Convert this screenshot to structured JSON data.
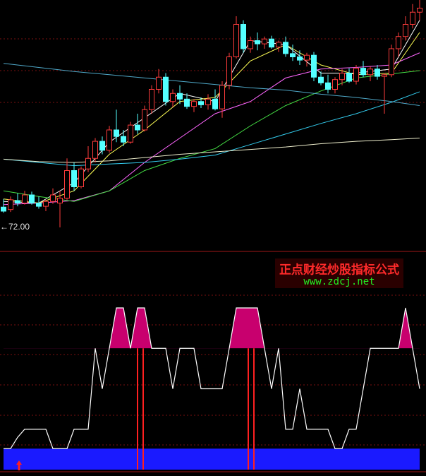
{
  "chart_data": {
    "type": "candlestick",
    "ylim": [
      70,
      100
    ],
    "up_color": "#ff3c3c",
    "down_color": "#54ffff",
    "candles": {
      "open": [
        74.5,
        74.2,
        75.3,
        75.0,
        76.0,
        75.0,
        74.6,
        75.2,
        75.0,
        75.6,
        79.0,
        77.0,
        79.2,
        80.5,
        82.6,
        81.5,
        84.0,
        83.2,
        82.5,
        84.6,
        84.0,
        86.5,
        89.0,
        90.5,
        87.5,
        88.5,
        87.8,
        86.9,
        87.5,
        87.1,
        87.8,
        86.6,
        89.5,
        93.0,
        97.0,
        94.0,
        95.0,
        94.6,
        95.2,
        94.2,
        94.8,
        93.4,
        93.0,
        92.6,
        93.2,
        90.5,
        89.8,
        89.0,
        90.2,
        91.0,
        90.0,
        91.6,
        90.8,
        91.5,
        90.6,
        90.8,
        94.0,
        95.5,
        97.0,
        98.5
      ],
      "high": [
        75.5,
        75.8,
        76.2,
        76.5,
        76.4,
        75.8,
        75.4,
        76.8,
        76.5,
        80.5,
        80.0,
        79.5,
        82.0,
        83.0,
        83.2,
        84.5,
        86.5,
        84.0,
        85.0,
        86.0,
        87.0,
        89.5,
        91.5,
        91.0,
        89.0,
        89.5,
        88.5,
        87.8,
        88.0,
        88.4,
        89.0,
        90.0,
        93.5,
        98.0,
        97.5,
        95.5,
        96.0,
        95.5,
        95.6,
        95.0,
        95.5,
        94.5,
        93.8,
        93.5,
        93.6,
        91.2,
        90.8,
        90.5,
        91.5,
        91.6,
        92.0,
        92.5,
        91.8,
        92.0,
        91.0,
        94.5,
        96.0,
        98.0,
        99.5,
        100
      ],
      "low": [
        73.8,
        73.9,
        74.6,
        74.8,
        74.8,
        74.3,
        74.0,
        74.9,
        72.0,
        75.4,
        76.5,
        76.8,
        78.8,
        80.0,
        81.0,
        81.2,
        82.5,
        82.0,
        82.3,
        83.5,
        83.8,
        86.0,
        88.5,
        87.0,
        86.8,
        87.2,
        86.6,
        86.2,
        86.7,
        86.5,
        86.4,
        85.5,
        89.0,
        92.8,
        93.5,
        93.5,
        93.8,
        94.0,
        94.0,
        93.6,
        93.0,
        92.5,
        92.0,
        91.8,
        90.0,
        89.5,
        88.5,
        88.5,
        89.5,
        89.8,
        89.6,
        90.5,
        90.0,
        90.2,
        86.0,
        90.5,
        93.0,
        95.0,
        96.5,
        97.5
      ],
      "close": [
        74.0,
        75.4,
        75.0,
        76.0,
        75.0,
        74.6,
        75.2,
        76.0,
        75.6,
        79.0,
        77.0,
        79.2,
        80.5,
        82.6,
        81.5,
        84.0,
        83.2,
        82.5,
        84.6,
        84.0,
        86.5,
        89.0,
        90.5,
        87.5,
        88.5,
        87.8,
        86.9,
        87.5,
        87.1,
        87.8,
        86.6,
        89.5,
        93.0,
        97.0,
        94.0,
        95.0,
        94.6,
        95.2,
        94.2,
        94.8,
        93.4,
        93.0,
        92.6,
        93.2,
        90.5,
        89.8,
        89.0,
        90.2,
        91.0,
        90.0,
        91.6,
        90.8,
        91.5,
        90.6,
        90.8,
        94.0,
        95.5,
        97.0,
        98.5,
        99.0
      ]
    },
    "low_marker": {
      "value": 72,
      "label": "←72.00"
    },
    "ma_x": [
      0,
      5,
      10,
      15,
      20,
      25,
      30,
      35,
      40,
      45,
      50,
      55,
      59
    ],
    "series": [
      {
        "color": "#ffffff",
        "values": [
          75.2,
          75.0,
          77.5,
          82.5,
          85.5,
          88.5,
          87.5,
          95,
          94.5,
          91,
          91,
          91.5,
          97.5
        ]
      },
      {
        "color": "#ffff55",
        "values": [
          75.5,
          75,
          76.5,
          81,
          84,
          87.5,
          88,
          92.5,
          94.5,
          92,
          90.8,
          91,
          96
        ]
      },
      {
        "color": "#ff66ff",
        "values": [
          74.8,
          75,
          75.3,
          76.5,
          80,
          83,
          86,
          87.5,
          90.4,
          91.5,
          91.7,
          92,
          93.5
        ]
      },
      {
        "color": "#44dd44",
        "values": [
          76.5,
          75.8,
          75.2,
          76.5,
          79,
          80.5,
          81.7,
          84.5,
          87,
          88.8,
          90.4,
          90.9,
          91.3
        ]
      },
      {
        "color": "#33ccee",
        "values": [
          80.4,
          80,
          79.6,
          79.8,
          80,
          80.4,
          80.9,
          82.2,
          83.5,
          84.8,
          86,
          87.4,
          88.7
        ]
      },
      {
        "color": "#eeeecc",
        "values": [
          80.4,
          80.1,
          80,
          80.2,
          80.6,
          81,
          81.3,
          81.6,
          81.9,
          82.3,
          82.6,
          82.8,
          83
        ]
      },
      {
        "color": "#4fa8c8",
        "values": [
          92.2,
          91.7,
          91.2,
          90.8,
          90.4,
          90,
          89.6,
          89.2,
          88.9,
          88.4,
          88,
          87.5,
          87
        ]
      }
    ],
    "indicator": {
      "ylim": [
        0,
        100
      ],
      "color": "#ffffff",
      "values": [
        13,
        13,
        20,
        25,
        25,
        25,
        25,
        13,
        13,
        13,
        25,
        25,
        25,
        75,
        50,
        75,
        100,
        100,
        75,
        100,
        100,
        75,
        75,
        75,
        50,
        75,
        75,
        75,
        50,
        50,
        50,
        50,
        75,
        100,
        100,
        100,
        100,
        75,
        50,
        75,
        25,
        25,
        50,
        25,
        25,
        25,
        25,
        13,
        13,
        25,
        25,
        50,
        75,
        75,
        75,
        75,
        75,
        100,
        75,
        50
      ],
      "upper_fill": {
        "level": 75,
        "color": "#c8006e"
      },
      "lower_fill": {
        "level": 13,
        "color": "#1a1aff"
      },
      "signals": [
        19,
        19.8,
        34.7,
        35.5
      ],
      "signal_color": "#ff2020",
      "arrow_x": 2.2
    }
  },
  "watermark": {
    "title": "正点财经炒股指标公式",
    "url": "www.zdcj.net"
  }
}
